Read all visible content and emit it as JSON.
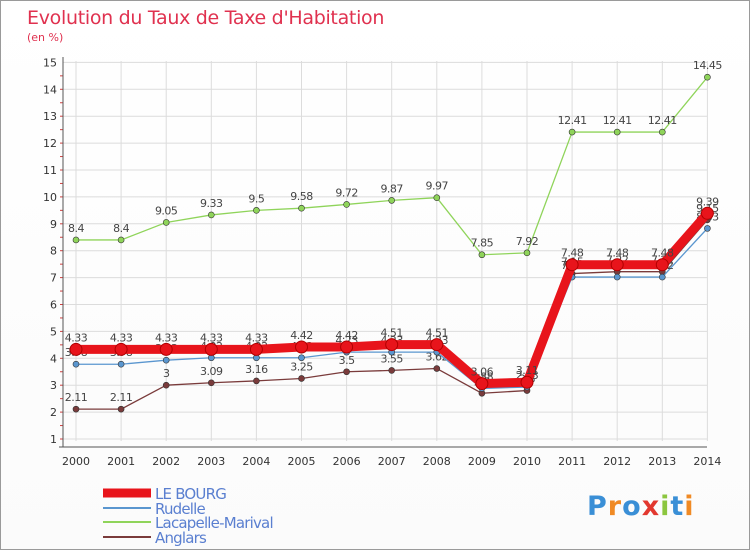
{
  "title": "Evolution du Taux de Taxe d'Habitation",
  "subtitle": "(en %)",
  "logo": {
    "text": "Proxiti",
    "letters": [
      "P",
      "r",
      "o",
      "x",
      "i",
      "t",
      "i"
    ],
    "colors": [
      "#3a8fd6",
      "#f08a24",
      "#3a8fd6",
      "#e2382f",
      "#8cc63f",
      "#3a8fd6",
      "#f08a24"
    ]
  },
  "chart_data": {
    "type": "line",
    "title": "Evolution du Taux de Taxe d'Habitation",
    "ylabel": "(en %)",
    "xlabel": "",
    "x": [
      "2000",
      "2001",
      "2002",
      "2003",
      "2004",
      "2005",
      "2006",
      "2007",
      "2008",
      "2009",
      "2010",
      "2011",
      "2012",
      "2013",
      "2014"
    ],
    "ylim": [
      1,
      15
    ],
    "yticks": [
      1,
      2,
      3,
      4,
      5,
      6,
      7,
      8,
      9,
      10,
      11,
      12,
      13,
      14,
      15
    ],
    "grid": true,
    "legend_position": "bottom-left",
    "series": [
      {
        "name": "Lacapelle-Marival",
        "color": "#8fd45a",
        "values": [
          8.4,
          8.4,
          9.05,
          9.33,
          9.5,
          9.58,
          9.72,
          9.87,
          9.97,
          7.85,
          7.92,
          12.41,
          12.41,
          12.41,
          14.45
        ],
        "labels": [
          "8.4",
          "8.4",
          "9.05",
          "9.33",
          "9.5",
          "9.58",
          "9.72",
          "9.87",
          "9.97",
          "7.85",
          "7.92",
          "12.41",
          "12.41",
          "12.41",
          "14.45"
        ]
      },
      {
        "name": "Anglars",
        "color": "#7a3b3b",
        "values": [
          2.11,
          2.11,
          3,
          3.09,
          3.16,
          3.25,
          3.5,
          3.55,
          3.62,
          2.7,
          2.8,
          7.15,
          7.22,
          7.22,
          9.15
        ],
        "labels": [
          "2.11",
          "2.11",
          "3",
          "3.09",
          "3.16",
          "3.25",
          "3.5",
          "3.55",
          "3.62",
          "2.7",
          "2.8",
          "7.15",
          "7.22",
          "7.22",
          "9.15"
        ]
      },
      {
        "name": "Rudelle",
        "color": "#5a96cf",
        "values": [
          3.78,
          3.78,
          3.93,
          4.02,
          4.02,
          4.02,
          4.23,
          4.23,
          4.23,
          2.88,
          2.93,
          7.02,
          7.02,
          7.02,
          8.83
        ],
        "labels": [
          "3.78",
          "3.78",
          "3.93",
          "4.02",
          "4.02",
          "4.02",
          "4.23",
          "4.23",
          "4.23",
          "2.88",
          "2.93",
          "7.02",
          "7.02",
          "7.02",
          "8.83"
        ]
      },
      {
        "name": "LE BOURG",
        "color": "#e8141b",
        "values": [
          4.33,
          4.33,
          4.33,
          4.33,
          4.33,
          4.42,
          4.42,
          4.51,
          4.51,
          3.06,
          3.11,
          7.48,
          7.48,
          7.48,
          9.39
        ],
        "labels": [
          "4.33",
          "4.33",
          "4.33",
          "4.33",
          "4.33",
          "4.42",
          "4.42",
          "4.51",
          "4.51",
          "3.06",
          "3.11",
          "7.48",
          "7.48",
          "7.48",
          "9.39"
        ]
      }
    ],
    "legend_order": [
      "LE BOURG",
      "Rudelle",
      "Lacapelle-Marival",
      "Anglars"
    ]
  }
}
